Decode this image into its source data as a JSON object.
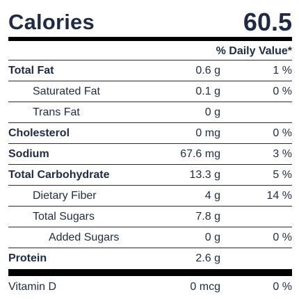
{
  "calories": {
    "label": "Calories",
    "value": "60.5"
  },
  "daily_value_header": "% Daily Value*",
  "nutrients": [
    {
      "name": "Total Fat",
      "amount": "0.6 g",
      "dv": "1 %"
    },
    {
      "name": "Saturated Fat",
      "amount": "0.1 g",
      "dv": "0 %"
    },
    {
      "name": "Trans Fat",
      "amount": "0 g",
      "dv": ""
    },
    {
      "name": "Cholesterol",
      "amount": "0 mg",
      "dv": "0 %"
    },
    {
      "name": "Sodium",
      "amount": "67.6 mg",
      "dv": "3 %"
    },
    {
      "name": "Total Carbohydrate",
      "amount": "13.3 g",
      "dv": "5 %"
    },
    {
      "name": "Dietary Fiber",
      "amount": "4 g",
      "dv": "14 %"
    },
    {
      "name": "Total Sugars",
      "amount": "7.8 g",
      "dv": ""
    },
    {
      "name": "Added Sugars",
      "amount": "0 g",
      "dv": "0 %"
    },
    {
      "name": "Protein",
      "amount": "2.6 g",
      "dv": ""
    }
  ],
  "vitamins": [
    {
      "name": "Vitamin D",
      "amount": "0 mcg",
      "dv": "0 %"
    }
  ]
}
